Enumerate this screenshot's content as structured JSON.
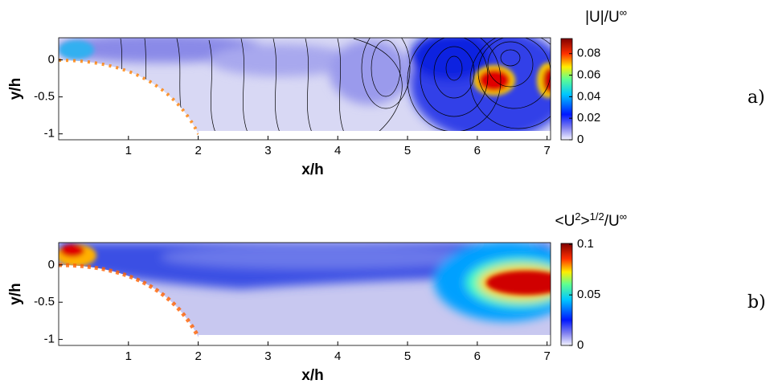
{
  "chart_data": [
    {
      "type": "heatmap",
      "xlabel": "x/h",
      "ylabel": "y/h",
      "xlim": [
        0,
        7.05
      ],
      "ylim": [
        -1.08,
        0.3
      ],
      "xticks": [
        1,
        2,
        3,
        4,
        5,
        6,
        7
      ],
      "yticks": [
        0,
        -0.5,
        -1
      ],
      "colorbar_label": [
        {
          "text": "|U|/U",
          "sup": false
        },
        {
          "text": "∞",
          "sup": true
        }
      ],
      "clim": [
        0,
        0.094
      ],
      "cticks": [
        0,
        0.02,
        0.04,
        0.06,
        0.08
      ],
      "panel_label": "a)"
    },
    {
      "type": "heatmap",
      "xlabel": "x/h",
      "ylabel": "y/h",
      "xlim": [
        0,
        7.05
      ],
      "ylim": [
        -1.08,
        0.3
      ],
      "xticks": [
        1,
        2,
        3,
        4,
        5,
        6,
        7
      ],
      "yticks": [
        0,
        -0.5,
        -1
      ],
      "colorbar_label": [
        {
          "text": "<U",
          "sup": false
        },
        {
          "text": "2",
          "sup": true
        },
        {
          "text": ">",
          "sup": false
        },
        {
          "text": "1/2",
          "sup": true
        },
        {
          "text": "/U",
          "sup": false
        },
        {
          "text": "∞",
          "sup": true
        }
      ],
      "clim": [
        0,
        0.101
      ],
      "cticks": [
        0,
        0.05,
        0.1
      ],
      "panel_label": "b)"
    }
  ]
}
